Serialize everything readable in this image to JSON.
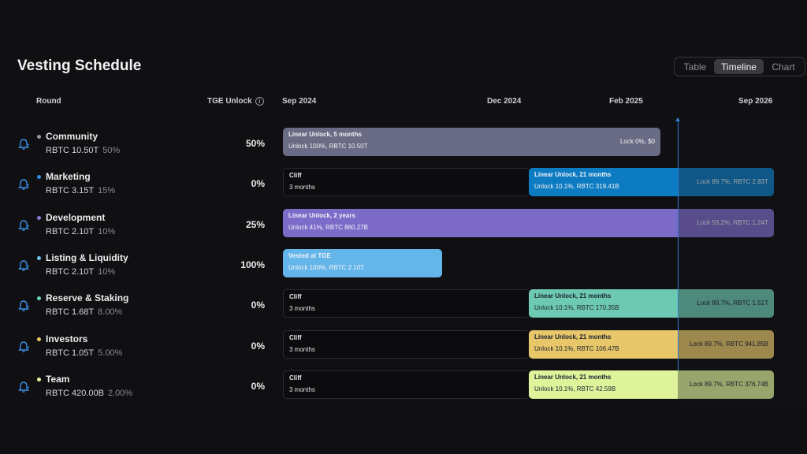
{
  "title": "Vesting Schedule",
  "view_tabs": [
    {
      "label": "Table",
      "active": false
    },
    {
      "label": "Timeline",
      "active": true
    },
    {
      "label": "Chart",
      "active": false
    }
  ],
  "headers": {
    "round": "Round",
    "tge_unlock": "TGE Unlock",
    "info_icon": "i",
    "dates": [
      "Sep 2024",
      "Dec 2024",
      "Feb 2025",
      "Sep 2026"
    ]
  },
  "colors": {
    "community": "#6a6b84",
    "marketing": "#0d7bc2",
    "development": "#7d6bc9",
    "listing": "#64b6ea",
    "reserve": "#6dc9b1",
    "investors": "#e7c76a",
    "team": "#dff39b",
    "timeline_marker": "#2f7fd6"
  },
  "rows": [
    {
      "name": "Community",
      "amount": "RBTC 10.50T",
      "pct": "50%",
      "tge": "50%",
      "dot_color": "#9a9ba3",
      "bars": [
        {
          "kind": "linear",
          "title": "Linear Unlock, 5 months",
          "detail": "Unlock 100%, RBTC 10.50T",
          "right": "Lock 0%, $0"
        }
      ]
    },
    {
      "name": "Marketing",
      "amount": "RBTC 3.15T",
      "pct": "15%",
      "tge": "0%",
      "dot_color": "#2f8fe0",
      "bars": [
        {
          "kind": "cliff",
          "title": "Cliff",
          "detail": "3 months"
        },
        {
          "kind": "linear",
          "title": "Linear Unlock, 21 months",
          "detail": "Unlock 10.1%, RBTC 319.41B",
          "right": "Lock 89.7%, RBTC 2.83T"
        }
      ]
    },
    {
      "name": "Development",
      "amount": "RBTC 2.10T",
      "pct": "10%",
      "tge": "25%",
      "dot_color": "#8b7bd6",
      "bars": [
        {
          "kind": "linear",
          "title": "Linear Unlock, 2 years",
          "detail": "Unlock 41%, RBTC 860.27B",
          "right": "Lock 59.2%, RBTC 1.24T"
        }
      ]
    },
    {
      "name": "Listing & Liquidity",
      "amount": "RBTC 2.10T",
      "pct": "10%",
      "tge": "100%",
      "dot_color": "#6ec0f0",
      "bars": [
        {
          "kind": "vested",
          "title": "Vested at TGE",
          "detail": "Unlock 100%, RBTC 2.10T"
        }
      ]
    },
    {
      "name": "Reserve & Staking",
      "amount": "RBTC 1.68T",
      "pct": "8.00%",
      "tge": "0%",
      "dot_color": "#6fd1b6",
      "bars": [
        {
          "kind": "cliff",
          "title": "Cliff",
          "detail": "3 months"
        },
        {
          "kind": "linear",
          "title": "Linear Unlock, 21 months",
          "detail": "Unlock 10.1%, RBTC 170.35B",
          "right": "Lock 89.7%, RBTC 1.51T"
        }
      ]
    },
    {
      "name": "Investors",
      "amount": "RBTC 1.05T",
      "pct": "5.00%",
      "tge": "0%",
      "dot_color": "#e9c868",
      "bars": [
        {
          "kind": "cliff",
          "title": "Cliff",
          "detail": "3 months"
        },
        {
          "kind": "linear",
          "title": "Linear Unlock, 21 months",
          "detail": "Unlock 10.1%, RBTC 106.47B",
          "right": "Lock 89.7%, RBTC 941.85B"
        }
      ]
    },
    {
      "name": "Team",
      "amount": "RBTC 420.00B",
      "pct": "2.00%",
      "tge": "0%",
      "dot_color": "#e6f59e",
      "bars": [
        {
          "kind": "cliff",
          "title": "Cliff",
          "detail": "3 months"
        },
        {
          "kind": "linear",
          "title": "Linear Unlock, 21 months",
          "detail": "Unlock 10.1%, RBTC 42.59B",
          "right": "Lock 89.7%, RBTC 376.74B"
        }
      ]
    }
  ]
}
